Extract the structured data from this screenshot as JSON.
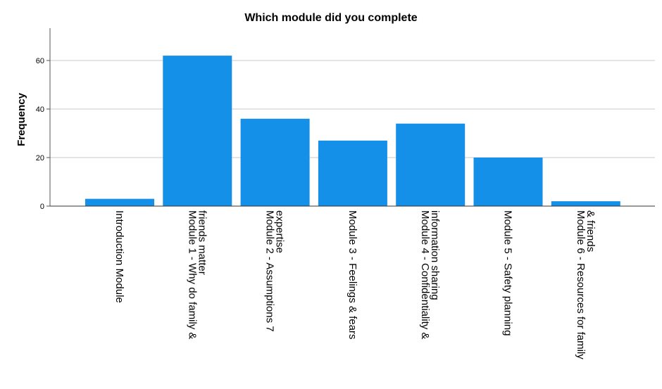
{
  "chart_data": {
    "type": "bar",
    "title": "Which module did you complete",
    "xlabel": "",
    "ylabel": "Frequency",
    "ylim": [
      0,
      73
    ],
    "yticks": [
      0,
      20,
      40,
      60
    ],
    "grid": true,
    "bar_color": "#1590e8",
    "categories": [
      [
        "Introduction Module"
      ],
      [
        "Module 1 - Why do family &",
        "friends matter"
      ],
      [
        "Module 2 - Assumptions 7",
        "expertise"
      ],
      [
        "Module 3 - Feelings & fears"
      ],
      [
        "Module 4 - Confidentiality &",
        "information sharing"
      ],
      [
        "Module 5 - Safety planning"
      ],
      [
        "Module 6 - Resources for family",
        "& friends"
      ]
    ],
    "values": [
      3,
      62,
      36,
      27,
      34,
      20,
      2
    ]
  }
}
